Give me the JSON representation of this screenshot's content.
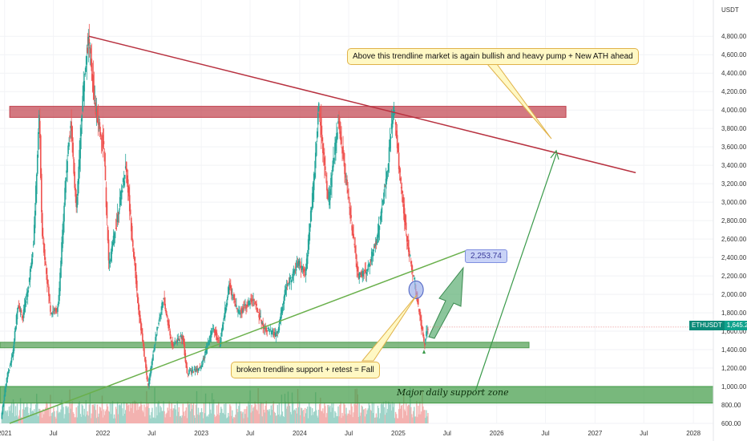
{
  "chart_data": {
    "type": "candlestick",
    "symbol": "ETHUSDT",
    "currency": "USDT",
    "last_price": 1645.23,
    "last_price_label": "1,645.23",
    "x_range": [
      "2020-12-15",
      "2028-03-15"
    ],
    "y_range": [
      600,
      4950
    ],
    "y_ticks": [
      600,
      800,
      1000,
      1200,
      1400,
      1600,
      1800,
      2000,
      2200,
      2400,
      2600,
      2800,
      3000,
      3200,
      3400,
      3600,
      3800,
      4000,
      4200,
      4400,
      4600,
      4800
    ],
    "y_tick_labels": [
      "600.00",
      "800.00",
      "1,000.00",
      "1,200.00",
      "1,400.00",
      "1,600.00",
      "1,800.00",
      "2,000.00",
      "2,200.00",
      "2,400.00",
      "2,600.00",
      "2,800.00",
      "3,000.00",
      "3,200.00",
      "3,400.00",
      "3,600.00",
      "3,800.00",
      "4,000.00",
      "4,200.00",
      "4,400.00",
      "4,600.00",
      "4,800.00"
    ],
    "x_ticks": [
      {
        "date": "2021-01-01",
        "label": "2021"
      },
      {
        "date": "2021-07-01",
        "label": "Jul"
      },
      {
        "date": "2022-01-01",
        "label": "2022"
      },
      {
        "date": "2022-07-01",
        "label": "Jul"
      },
      {
        "date": "2023-01-01",
        "label": "2023"
      },
      {
        "date": "2023-07-01",
        "label": "Jul"
      },
      {
        "date": "2024-01-01",
        "label": "2024"
      },
      {
        "date": "2024-07-01",
        "label": "Jul"
      },
      {
        "date": "2025-01-01",
        "label": "2025"
      },
      {
        "date": "2025-07-01",
        "label": "Jul"
      },
      {
        "date": "2026-01-01",
        "label": "2026"
      },
      {
        "date": "2026-07-01",
        "label": "Jul"
      },
      {
        "date": "2027-01-01",
        "label": "2027"
      },
      {
        "date": "2027-07-01",
        "label": "Jul"
      },
      {
        "date": "2028-01-01",
        "label": "2028"
      }
    ],
    "price_path": [
      [
        "2020-12-20",
        650
      ],
      [
        "2021-01-10",
        1100
      ],
      [
        "2021-02-01",
        1350
      ],
      [
        "2021-02-20",
        1900
      ],
      [
        "2021-03-10",
        1750
      ],
      [
        "2021-04-01",
        2100
      ],
      [
        "2021-04-20",
        2600
      ],
      [
        "2021-05-11",
        4000
      ],
      [
        "2021-05-20",
        2700
      ],
      [
        "2021-06-22",
        1800
      ],
      [
        "2021-07-20",
        1850
      ],
      [
        "2021-08-15",
        3200
      ],
      [
        "2021-09-05",
        3900
      ],
      [
        "2021-09-25",
        2900
      ],
      [
        "2021-10-20",
        4200
      ],
      [
        "2021-11-10",
        4800
      ],
      [
        "2021-12-05",
        4000
      ],
      [
        "2022-01-05",
        3600
      ],
      [
        "2022-01-24",
        2300
      ],
      [
        "2022-03-28",
        3400
      ],
      [
        "2022-05-12",
        1900
      ],
      [
        "2022-06-18",
        1000
      ],
      [
        "2022-07-20",
        1600
      ],
      [
        "2022-08-14",
        1950
      ],
      [
        "2022-09-15",
        1450
      ],
      [
        "2022-10-25",
        1550
      ],
      [
        "2022-11-09",
        1150
      ],
      [
        "2022-12-31",
        1200
      ],
      [
        "2023-02-15",
        1650
      ],
      [
        "2023-03-10",
        1450
      ],
      [
        "2023-04-15",
        2100
      ],
      [
        "2023-05-20",
        1800
      ],
      [
        "2023-07-14",
        1950
      ],
      [
        "2023-08-20",
        1650
      ],
      [
        "2023-10-10",
        1550
      ],
      [
        "2023-11-10",
        2050
      ],
      [
        "2023-12-28",
        2350
      ],
      [
        "2024-01-23",
        2200
      ],
      [
        "2024-02-28",
        3400
      ],
      [
        "2024-03-12",
        4050
      ],
      [
        "2024-04-18",
        3000
      ],
      [
        "2024-05-25",
        3900
      ],
      [
        "2024-07-06",
        2900
      ],
      [
        "2024-08-05",
        2200
      ],
      [
        "2024-09-06",
        2250
      ],
      [
        "2024-10-15",
        2600
      ],
      [
        "2024-11-20",
        3300
      ],
      [
        "2024-12-16",
        4050
      ],
      [
        "2025-01-10",
        3200
      ],
      [
        "2025-02-03",
        2600
      ],
      [
        "2025-03-10",
        2000
      ],
      [
        "2025-04-09",
        1450
      ],
      [
        "2025-04-20",
        1645
      ]
    ],
    "lines": [
      {
        "name": "descending-resistance",
        "from": [
          "2021-11-10",
          4800
        ],
        "to": [
          "2027-06-01",
          3320
        ],
        "color": "#b83240"
      },
      {
        "name": "rising-trendline",
        "from": [
          "2021-01-20",
          600
        ],
        "to": [
          "2025-09-15",
          2480
        ],
        "color": "#6ab04c"
      }
    ],
    "zones": [
      {
        "name": "resistance-zone",
        "y_range": [
          3920,
          4040
        ],
        "x_range": [
          "2021-01-20",
          "2026-09-15"
        ],
        "color": "#c0404c"
      },
      {
        "name": "support-line-zone",
        "y_range": [
          1420,
          1480
        ],
        "x_range": [
          "2020-12-15",
          "2026-05-01"
        ],
        "color": "#4f9d50"
      },
      {
        "name": "major-support-zone",
        "y_range": [
          820,
          1000
        ],
        "x_range": [
          "2020-12-15",
          "2028-03-15"
        ],
        "color": "#3f9a45"
      }
    ],
    "projected_target": {
      "value": 2253.74,
      "label": "2,253.74"
    },
    "annotations": {
      "bullish_note": "Above this trendline market is again bullish and heavy pump + New ATH ahead",
      "fall_note": "broken trendline support + retest = Fall",
      "zone_label": "Major daily support zone"
    },
    "colors": {
      "up": "#26a69a",
      "down": "#ef5350",
      "up_volume": "#9fd4c9",
      "down_volume": "#f3b2b0"
    }
  }
}
